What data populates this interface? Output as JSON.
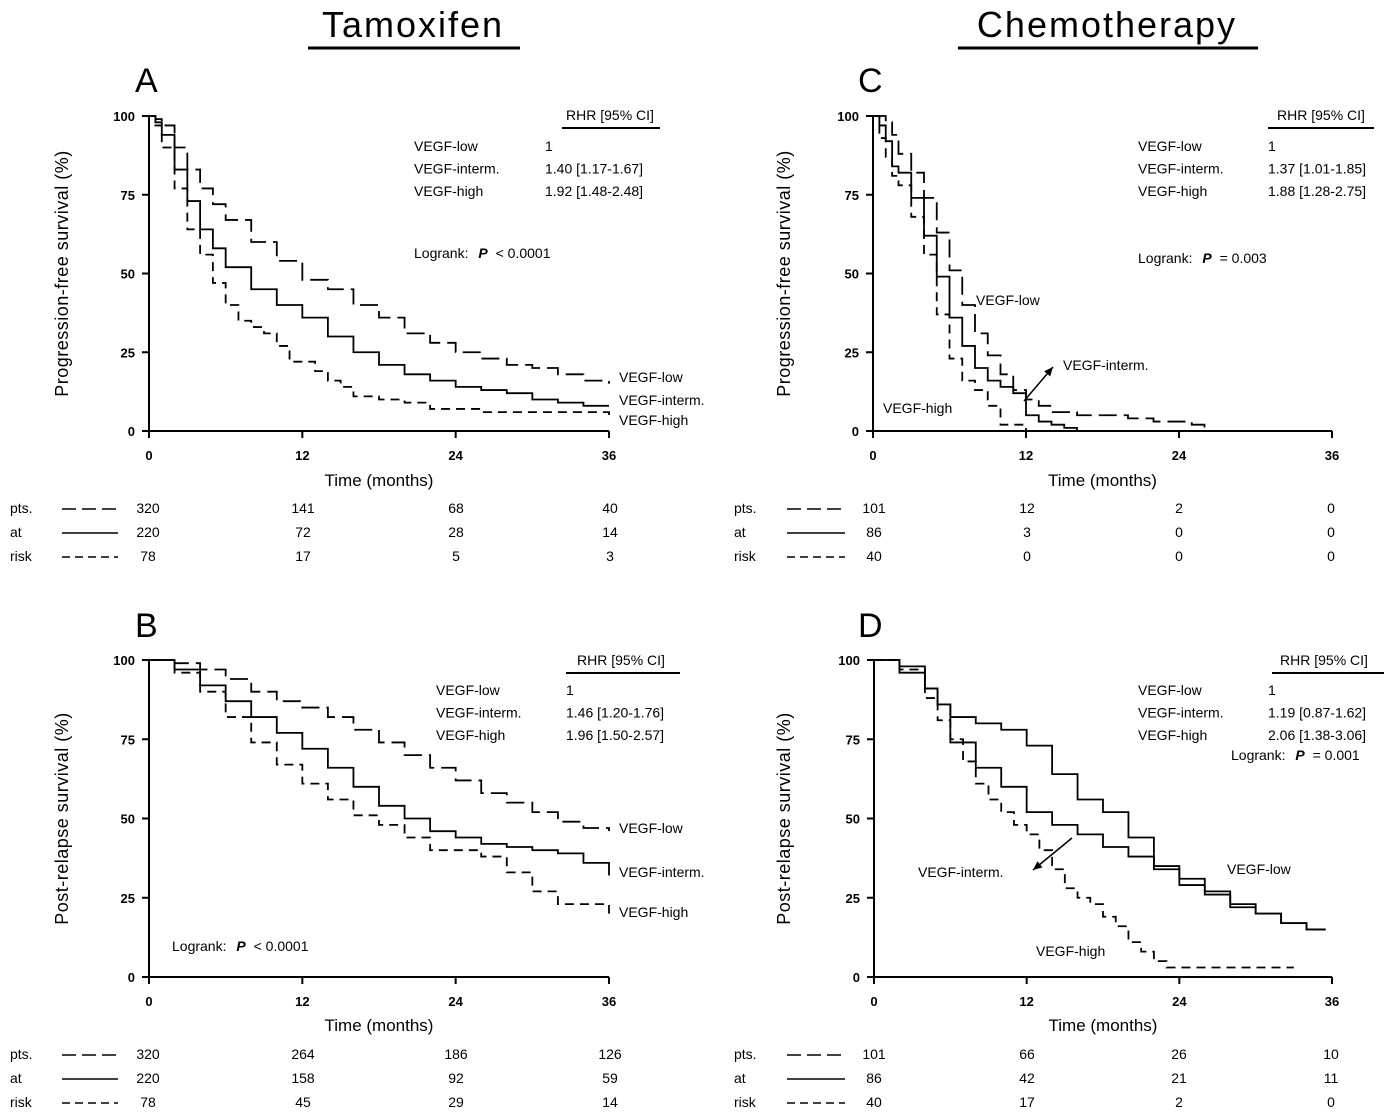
{
  "headers": [
    "Tamoxifen",
    "Chemotherapy"
  ],
  "chart_data": [
    {
      "panel": "A",
      "type": "line",
      "step": true,
      "ylabel": "Progression-free survival (%)",
      "xlabel": "Time (months)",
      "xlim": [
        0,
        36
      ],
      "ylim": [
        0,
        100
      ],
      "xticks": [
        "0",
        "12",
        "24",
        "36"
      ],
      "yticks": [
        "0",
        "25",
        "50",
        "75",
        "100"
      ],
      "rhr_header": "RHR [95% CI]",
      "rhr_rows": [
        {
          "group": "VEGF-low",
          "value": "1"
        },
        {
          "group": "VEGF-interm.",
          "value": "1.40 [1.17-1.67]"
        },
        {
          "group": "VEGF-high",
          "value": "1.92 [1.48-2.48]"
        }
      ],
      "logrank_label": "Logrank:",
      "p_symbol": "P",
      "p_text": "< 0.0001",
      "series": [
        {
          "name": "VEGF-low",
          "dash": "long",
          "x": [
            0,
            0.5,
            1,
            2,
            3,
            4,
            5,
            6,
            8,
            10,
            12,
            14,
            16,
            18,
            20,
            22,
            24,
            26,
            28,
            30,
            32,
            34,
            36
          ],
          "y": [
            100,
            99,
            97,
            90,
            83,
            77,
            72,
            67,
            60,
            54,
            48,
            45,
            40,
            36,
            31,
            28,
            25,
            23,
            21,
            20,
            18,
            16,
            15
          ]
        },
        {
          "name": "VEGF-interm.",
          "dash": "solid",
          "x": [
            0,
            0.5,
            1,
            2,
            3,
            4,
            5,
            6,
            8,
            10,
            12,
            14,
            16,
            18,
            20,
            22,
            24,
            26,
            28,
            30,
            32,
            34,
            36
          ],
          "y": [
            100,
            98,
            94,
            83,
            73,
            64,
            58,
            52,
            45,
            40,
            36,
            30,
            25,
            21,
            18,
            16,
            14,
            13,
            12,
            10,
            9,
            8,
            8
          ]
        },
        {
          "name": "VEGF-high",
          "dash": "dash",
          "x": [
            0,
            0.5,
            1,
            2,
            3,
            4,
            5,
            6,
            7,
            8,
            9,
            10,
            11,
            12,
            13,
            14,
            15,
            16,
            18,
            20,
            22,
            24,
            26,
            28,
            30,
            32,
            34,
            36
          ],
          "y": [
            100,
            97,
            90,
            77,
            64,
            56,
            47,
            40,
            35,
            33,
            31,
            27,
            22,
            22,
            19,
            16,
            14,
            11,
            10,
            9,
            7,
            7,
            6,
            6,
            6,
            6,
            6,
            5
          ]
        }
      ],
      "curve_labels": [
        "VEGF-low",
        "VEGF-interm.",
        "VEGF-high"
      ],
      "risk_row_labels": [
        "pts.",
        "at",
        "risk"
      ],
      "risk_values": [
        [
          "320",
          "141",
          "68",
          "40"
        ],
        [
          "220",
          "72",
          "28",
          "14"
        ],
        [
          "78",
          "17",
          "5",
          "3"
        ]
      ]
    },
    {
      "panel": "B",
      "type": "line",
      "step": true,
      "ylabel": "Post-relapse survival (%)",
      "xlabel": "Time (months)",
      "xlim": [
        0,
        36
      ],
      "ylim": [
        0,
        100
      ],
      "xticks": [
        "0",
        "12",
        "24",
        "36"
      ],
      "yticks": [
        "0",
        "25",
        "50",
        "75",
        "100"
      ],
      "rhr_header": "RHR [95% CI]",
      "rhr_rows": [
        {
          "group": "VEGF-low",
          "value": "1"
        },
        {
          "group": "VEGF-interm.",
          "value": "1.46 [1.20-1.76]"
        },
        {
          "group": "VEGF-high",
          "value": "1.96 [1.50-2.57]"
        }
      ],
      "logrank_label": "Logrank:",
      "p_symbol": "P",
      "p_text": "< 0.0001",
      "series": [
        {
          "name": "VEGF-low",
          "dash": "long",
          "x": [
            0,
            2,
            4,
            6,
            8,
            10,
            12,
            14,
            16,
            18,
            20,
            22,
            24,
            26,
            28,
            30,
            32,
            34,
            36
          ],
          "y": [
            100,
            99,
            97,
            94,
            90,
            87,
            85,
            82,
            78,
            74,
            70,
            66,
            62,
            58,
            55,
            52,
            49,
            47,
            46
          ]
        },
        {
          "name": "VEGF-interm.",
          "dash": "solid",
          "x": [
            0,
            2,
            4,
            6,
            8,
            10,
            12,
            14,
            16,
            18,
            20,
            22,
            24,
            26,
            28,
            30,
            32,
            34,
            36
          ],
          "y": [
            100,
            97,
            92,
            87,
            82,
            77,
            72,
            66,
            60,
            54,
            50,
            46,
            44,
            42,
            41,
            40,
            39,
            36,
            32
          ]
        },
        {
          "name": "VEGF-high",
          "dash": "dash",
          "x": [
            0,
            2,
            4,
            6,
            8,
            10,
            12,
            14,
            16,
            18,
            20,
            22,
            24,
            26,
            28,
            30,
            32,
            34,
            36
          ],
          "y": [
            100,
            96,
            90,
            82,
            74,
            67,
            61,
            56,
            51,
            48,
            44,
            40,
            40,
            38,
            33,
            27,
            23,
            23,
            20
          ]
        }
      ],
      "curve_labels": [
        "VEGF-low",
        "VEGF-interm.",
        "VEGF-high"
      ],
      "risk_row_labels": [
        "pts.",
        "at",
        "risk"
      ],
      "risk_values": [
        [
          "320",
          "264",
          "186",
          "126"
        ],
        [
          "220",
          "158",
          "92",
          "59"
        ],
        [
          "78",
          "45",
          "29",
          "14"
        ]
      ]
    },
    {
      "panel": "C",
      "type": "line",
      "step": true,
      "ylabel": "Progression-free survival (%)",
      "xlabel": "Time (months)",
      "xlim": [
        0,
        36
      ],
      "ylim": [
        0,
        100
      ],
      "xticks": [
        "0",
        "12",
        "24",
        "36"
      ],
      "yticks": [
        "0",
        "25",
        "50",
        "75",
        "100"
      ],
      "rhr_header": "RHR [95% CI]",
      "rhr_rows": [
        {
          "group": "VEGF-low",
          "value": "1"
        },
        {
          "group": "VEGF-interm.",
          "value": "1.37 [1.01-1.85]"
        },
        {
          "group": "VEGF-high",
          "value": "1.88 [1.28-2.75]"
        }
      ],
      "logrank_label": "Logrank:",
      "p_symbol": "P",
      "p_text": "= 0.003",
      "series": [
        {
          "name": "VEGF-low",
          "dash": "long",
          "x": [
            0,
            1,
            1.5,
            2,
            3,
            4,
            5,
            6,
            7,
            8,
            9,
            10,
            11,
            12,
            13,
            14,
            16,
            18,
            20,
            22,
            24,
            25,
            26
          ],
          "y": [
            100,
            98,
            94,
            88,
            82,
            74,
            63,
            51,
            40,
            31,
            24,
            18,
            13,
            10,
            8,
            6,
            5,
            5,
            4,
            3,
            3,
            2,
            1
          ]
        },
        {
          "name": "VEGF-interm.",
          "dash": "solid",
          "x": [
            0,
            0.5,
            1,
            1.5,
            2,
            3,
            4,
            5,
            6,
            7,
            8,
            9,
            10,
            11,
            12,
            13,
            14,
            15,
            16
          ],
          "y": [
            100,
            97,
            92,
            84,
            82,
            74,
            62,
            49,
            36,
            27,
            20,
            16,
            14,
            12,
            5,
            3,
            2,
            1,
            0
          ]
        },
        {
          "name": "VEGF-high",
          "dash": "dash",
          "x": [
            0,
            0.5,
            1,
            1.5,
            2,
            3,
            4,
            5,
            6,
            7,
            8,
            9,
            10,
            12
          ],
          "y": [
            100,
            93,
            87,
            81,
            78,
            68,
            56,
            37,
            23,
            16,
            13,
            8,
            2,
            0
          ]
        }
      ],
      "curve_labels": [
        "VEGF-low",
        "VEGF-interm.",
        "VEGF-high"
      ],
      "risk_row_labels": [
        "pts.",
        "at",
        "risk"
      ],
      "risk_values": [
        [
          "101",
          "12",
          "2",
          "0"
        ],
        [
          "86",
          "3",
          "0",
          "0"
        ],
        [
          "40",
          "0",
          "0",
          "0"
        ]
      ]
    },
    {
      "panel": "D",
      "type": "line",
      "step": true,
      "ylabel": "Post-relapse survival (%)",
      "xlabel": "Time (months)",
      "xlim": [
        0,
        36
      ],
      "ylim": [
        0,
        100
      ],
      "xticks": [
        "0",
        "12",
        "24",
        "36"
      ],
      "yticks": [
        "0",
        "25",
        "50",
        "75",
        "100"
      ],
      "rhr_header": "RHR [95% CI]",
      "rhr_rows": [
        {
          "group": "VEGF-low",
          "value": "1"
        },
        {
          "group": "VEGF-interm.",
          "value": "1.19 [0.87-1.62]"
        },
        {
          "group": "VEGF-high",
          "value": "2.06 [1.38-3.06]"
        }
      ],
      "logrank_label": "Logrank:",
      "p_symbol": "P",
      "p_text": "= 0.001",
      "series": [
        {
          "name": "VEGF-low",
          "dash": "solid",
          "x": [
            0,
            2,
            4,
            5,
            6,
            8,
            10,
            12,
            14,
            16,
            18,
            20,
            22,
            24,
            26,
            28,
            30,
            32,
            34,
            35.5
          ],
          "y": [
            100,
            98,
            91,
            86,
            82,
            80,
            78,
            73,
            64,
            56,
            52,
            44,
            35,
            31,
            27,
            23,
            20,
            17,
            15,
            15
          ]
        },
        {
          "name": "VEGF-interm.",
          "dash": "solid",
          "x": [
            0,
            2,
            4,
            5,
            6,
            8,
            10,
            12,
            14,
            16,
            18,
            20,
            22,
            24,
            26,
            28,
            30,
            32,
            34,
            35.5
          ],
          "y": [
            100,
            96,
            91,
            86,
            74,
            66,
            60,
            52,
            48,
            45,
            41,
            38,
            34,
            29,
            26,
            22,
            20,
            17,
            15,
            15
          ]
        },
        {
          "name": "VEGF-high",
          "dash": "dash",
          "x": [
            0,
            2,
            4,
            5,
            6,
            7,
            8,
            9,
            10,
            11,
            12,
            13,
            14,
            15,
            16,
            17,
            18,
            19,
            20,
            21,
            22,
            23,
            24,
            26,
            28,
            30,
            32,
            33
          ],
          "y": [
            100,
            97,
            88,
            81,
            75,
            68,
            61,
            56,
            52,
            48,
            45,
            40,
            34,
            28,
            25,
            23,
            19,
            16,
            11,
            8,
            5,
            3,
            3,
            3,
            3,
            3,
            3,
            3
          ]
        }
      ],
      "curve_labels": [
        "VEGF-low",
        "VEGF-interm.",
        "VEGF-high"
      ],
      "risk_row_labels": [
        "pts.",
        "at",
        "risk"
      ],
      "risk_values": [
        [
          "101",
          "66",
          "26",
          "10"
        ],
        [
          "86",
          "42",
          "21",
          "11"
        ],
        [
          "40",
          "17",
          "2",
          "0"
        ]
      ]
    }
  ]
}
